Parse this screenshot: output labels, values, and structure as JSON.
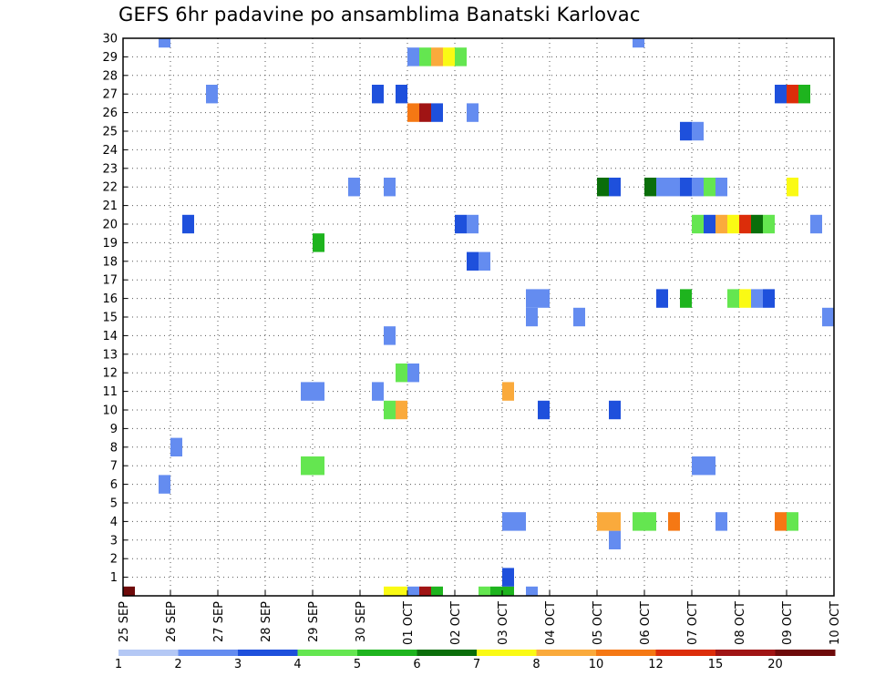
{
  "chart_data": {
    "type": "heatmap",
    "title": "GEFS 6hr padavine po ansamblima Banatski Karlovac",
    "x_tick_labels": [
      "25 SEP",
      "26 SEP",
      "27 SEP",
      "28 SEP",
      "29 SEP",
      "30 SEP",
      "01 OCT",
      "02 OCT",
      "03 OCT",
      "04 OCT",
      "05 OCT",
      "06 OCT",
      "07 OCT",
      "08 OCT",
      "09 OCT",
      "10 OCT"
    ],
    "x_range_days": [
      0,
      15
    ],
    "y_range_members": [
      0,
      30
    ],
    "y_tick_labels": [
      "1",
      "2",
      "3",
      "4",
      "5",
      "6",
      "7",
      "8",
      "9",
      "10",
      "11",
      "12",
      "13",
      "14",
      "15",
      "16",
      "17",
      "18",
      "19",
      "20",
      "21",
      "22",
      "23",
      "24",
      "25",
      "26",
      "27",
      "28",
      "29",
      "30"
    ],
    "grid": true,
    "colorbar": {
      "colors": [
        "#b4c8f5",
        "#648cf0",
        "#1e50dc",
        "#64e650",
        "#1eb41e",
        "#0a6e0a",
        "#fafa14",
        "#faaa3c",
        "#f57814",
        "#dc2d0a",
        "#a01414",
        "#6e0a0a"
      ],
      "labels": [
        "1",
        "2",
        "3",
        "4",
        "5",
        "6",
        "7",
        "8",
        "10",
        "12",
        "15",
        "20"
      ]
    },
    "cells": [
      [
        5.5,
        0,
        6
      ],
      [
        5.75,
        0,
        6
      ],
      [
        6,
        0,
        1
      ],
      [
        6.25,
        0,
        10
      ],
      [
        6.5,
        0,
        4
      ],
      [
        7.5,
        0,
        3
      ],
      [
        7.75,
        0,
        4
      ],
      [
        8,
        0,
        4
      ],
      [
        8.5,
        0,
        1
      ],
      [
        0,
        0,
        11
      ],
      [
        8,
        1,
        2
      ],
      [
        10.25,
        3,
        1
      ],
      [
        8,
        4,
        1
      ],
      [
        8.25,
        4,
        1
      ],
      [
        10,
        4,
        7
      ],
      [
        10.25,
        4,
        7
      ],
      [
        10.75,
        4,
        3
      ],
      [
        11,
        4,
        3
      ],
      [
        11.5,
        4,
        8
      ],
      [
        12.5,
        4,
        1
      ],
      [
        13.75,
        4,
        8
      ],
      [
        14,
        4,
        3
      ],
      [
        0.75,
        6,
        1
      ],
      [
        3.75,
        7,
        3
      ],
      [
        4,
        7,
        3
      ],
      [
        12,
        7,
        1
      ],
      [
        12.25,
        7,
        1
      ],
      [
        1,
        8,
        1
      ],
      [
        5.5,
        10,
        3
      ],
      [
        5.75,
        10,
        7
      ],
      [
        8.75,
        10,
        2
      ],
      [
        10.25,
        10,
        2
      ],
      [
        3.75,
        11,
        1
      ],
      [
        4,
        11,
        1
      ],
      [
        5.25,
        11,
        1
      ],
      [
        8,
        11,
        7
      ],
      [
        5.75,
        12,
        3
      ],
      [
        6,
        12,
        1
      ],
      [
        5.5,
        14,
        1
      ],
      [
        8.5,
        15,
        1
      ],
      [
        9.5,
        15,
        1
      ],
      [
        14.75,
        15,
        1
      ],
      [
        8.5,
        16,
        1
      ],
      [
        8.75,
        16,
        1
      ],
      [
        11.25,
        16,
        2
      ],
      [
        11.75,
        16,
        4
      ],
      [
        12.75,
        16,
        3
      ],
      [
        13,
        16,
        6
      ],
      [
        13.25,
        16,
        1
      ],
      [
        13.5,
        16,
        2
      ],
      [
        7.25,
        18,
        2
      ],
      [
        7.5,
        18,
        1
      ],
      [
        4,
        19,
        4
      ],
      [
        1.25,
        20,
        2
      ],
      [
        7,
        20,
        2
      ],
      [
        7.25,
        20,
        1
      ],
      [
        12,
        20,
        3
      ],
      [
        12.25,
        20,
        2
      ],
      [
        12.5,
        20,
        7
      ],
      [
        12.75,
        20,
        6
      ],
      [
        13,
        20,
        9
      ],
      [
        13.25,
        20,
        5
      ],
      [
        13.5,
        20,
        3
      ],
      [
        14.5,
        20,
        1
      ],
      [
        4.75,
        22,
        1
      ],
      [
        5.5,
        22,
        1
      ],
      [
        10,
        22,
        5
      ],
      [
        10.25,
        22,
        2
      ],
      [
        11,
        22,
        5
      ],
      [
        11.25,
        22,
        1
      ],
      [
        11.5,
        22,
        1
      ],
      [
        11.75,
        22,
        2
      ],
      [
        12,
        22,
        1
      ],
      [
        12.25,
        22,
        3
      ],
      [
        12.5,
        22,
        1
      ],
      [
        14,
        22,
        6
      ],
      [
        11.75,
        25,
        2
      ],
      [
        12,
        25,
        1
      ],
      [
        6,
        26,
        8
      ],
      [
        6.25,
        26,
        10
      ],
      [
        6.5,
        26,
        2
      ],
      [
        7.25,
        26,
        1
      ],
      [
        1.75,
        27,
        1
      ],
      [
        5.25,
        27,
        2
      ],
      [
        5.75,
        27,
        2
      ],
      [
        13.75,
        27,
        2
      ],
      [
        14,
        27,
        9
      ],
      [
        14.25,
        27,
        4
      ],
      [
        6,
        29,
        1
      ],
      [
        6.25,
        29,
        3
      ],
      [
        6.5,
        29,
        7
      ],
      [
        6.75,
        29,
        6
      ],
      [
        7,
        29,
        3
      ],
      [
        0.75,
        30,
        1
      ],
      [
        10.75,
        30,
        1
      ]
    ]
  }
}
